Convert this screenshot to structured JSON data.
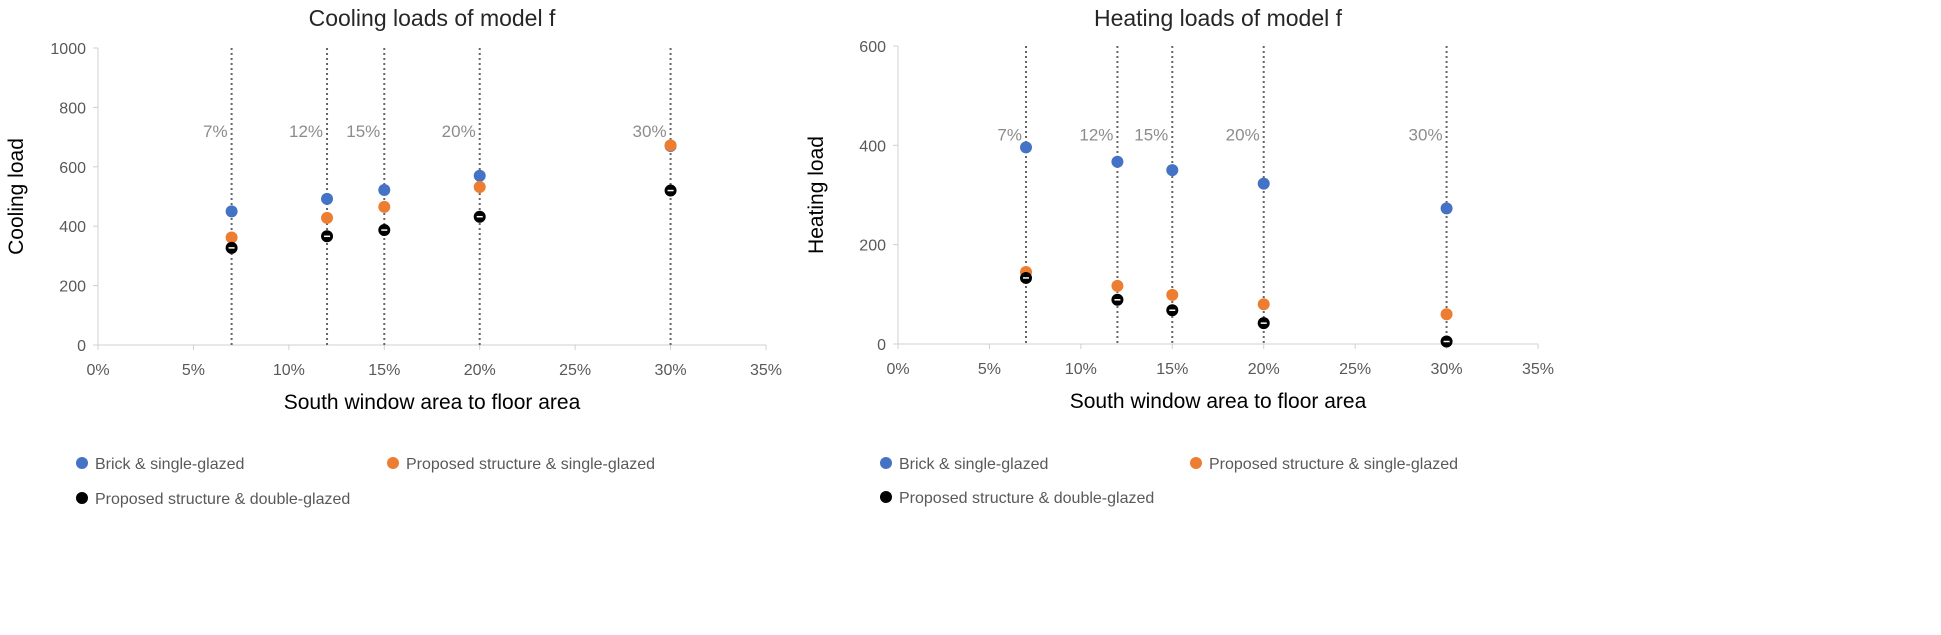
{
  "chart_data": [
    {
      "type": "scatter",
      "title": "Cooling loads of model f",
      "xlabel": "South window area to floor area",
      "ylabel": "Cooling load",
      "xlim": [
        0,
        35
      ],
      "ylim": [
        0,
        1000
      ],
      "x_ticks": [
        0,
        5,
        10,
        15,
        20,
        25,
        30,
        35
      ],
      "x_tick_labels": [
        "0%",
        "5%",
        "10%",
        "15%",
        "20%",
        "25%",
        "30%",
        "35%"
      ],
      "y_ticks": [
        0,
        200,
        400,
        600,
        800,
        1000
      ],
      "y_tick_labels": [
        "0",
        "200",
        "400",
        "600",
        "800",
        "1000"
      ],
      "grid": false,
      "reference_lines": [
        {
          "x": 7,
          "label": "7%",
          "label_y": 700
        },
        {
          "x": 12,
          "label": "12%",
          "label_y": 700
        },
        {
          "x": 15,
          "label": "15%",
          "label_y": 700
        },
        {
          "x": 20,
          "label": "20%",
          "label_y": 700
        },
        {
          "x": 30,
          "label": "30%",
          "label_y": 700
        }
      ],
      "x": [
        7,
        12,
        15,
        20,
        30
      ],
      "series": [
        {
          "name": "Brick & single-glazed",
          "color": "#4472C4",
          "values": [
            450,
            492,
            522,
            570,
            670
          ]
        },
        {
          "name": "Proposed structure & single-glazed",
          "color": "#ED7D31",
          "values": [
            362,
            428,
            465,
            532,
            672
          ]
        },
        {
          "name": "Proposed structure & double-glazed",
          "color": "#000000",
          "values": [
            327,
            366,
            387,
            432,
            520
          ]
        }
      ],
      "legend_position": "bottom"
    },
    {
      "type": "scatter",
      "title": "Heating loads of model f",
      "xlabel": "South window area to floor area",
      "ylabel": "Heating load",
      "xlim": [
        0,
        35
      ],
      "ylim": [
        0,
        600
      ],
      "x_ticks": [
        0,
        5,
        10,
        15,
        20,
        25,
        30,
        35
      ],
      "x_tick_labels": [
        "0%",
        "5%",
        "10%",
        "15%",
        "20%",
        "25%",
        "30%",
        "35%"
      ],
      "y_ticks": [
        0,
        200,
        400,
        600
      ],
      "y_tick_labels": [
        "0",
        "200",
        "400",
        "600"
      ],
      "grid": false,
      "reference_lines": [
        {
          "x": 7,
          "label": "7%",
          "label_y": 410
        },
        {
          "x": 12,
          "label": "12%",
          "label_y": 410
        },
        {
          "x": 15,
          "label": "15%",
          "label_y": 410
        },
        {
          "x": 20,
          "label": "20%",
          "label_y": 410
        },
        {
          "x": 30,
          "label": "30%",
          "label_y": 410
        }
      ],
      "x": [
        7,
        12,
        15,
        20,
        30
      ],
      "series": [
        {
          "name": "Brick & single-glazed",
          "color": "#4472C4",
          "values": [
            396,
            367,
            350,
            323,
            273
          ]
        },
        {
          "name": "Proposed structure & single-glazed",
          "color": "#ED7D31",
          "values": [
            145,
            117,
            99,
            80,
            60
          ]
        },
        {
          "name": "Proposed structure & double-glazed",
          "color": "#000000",
          "values": [
            133,
            89,
            68,
            42,
            5
          ]
        }
      ],
      "legend_position": "bottom"
    }
  ]
}
